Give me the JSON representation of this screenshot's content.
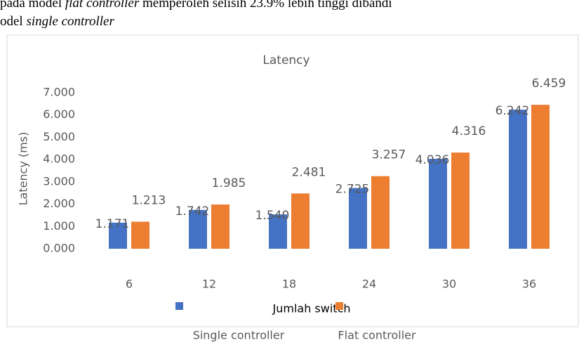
{
  "document": {
    "lines": [
      [
        {
          "text": "pada model ",
          "italic": false
        },
        {
          "text": "flat controller",
          "italic": true
        },
        {
          "text": " memperoleh selisih 23.9% lebih tinggi dibandi",
          "italic": false
        }
      ],
      [
        {
          "text": "odel ",
          "italic": false
        },
        {
          "text": "single controller",
          "italic": true
        }
      ]
    ]
  },
  "chart_data": {
    "type": "bar",
    "title": "Latency",
    "y_label": "Latency (ms)",
    "x_label": "Jumlah switch",
    "categories": [
      "6",
      "12",
      "18",
      "24",
      "30",
      "36"
    ],
    "series": [
      {
        "name": "Single controller",
        "color": "#4472c4",
        "values": [
          1.171,
          1.742,
          1.54,
          2.725,
          4.036,
          6.242
        ],
        "value_labels": [
          "1.171",
          "1.742",
          "1.540",
          "2.725",
          "4.036",
          "6.242"
        ]
      },
      {
        "name": "Flat controller",
        "color": "#ed7d31",
        "values": [
          1.213,
          1.985,
          2.481,
          3.257,
          4.316,
          6.459
        ],
        "value_labels": [
          "1.213",
          "1.985",
          "2.481",
          "3.257",
          "4.316",
          "6.459"
        ]
      }
    ],
    "ylim": [
      0,
      7
    ],
    "yticks": [
      {
        "value": 0,
        "label": "0.000"
      },
      {
        "value": 1,
        "label": "1.000"
      },
      {
        "value": 2,
        "label": "2.000"
      },
      {
        "value": 3,
        "label": "3.000"
      },
      {
        "value": 4,
        "label": "4.000"
      },
      {
        "value": 5,
        "label": "5.000"
      },
      {
        "value": 6,
        "label": "6.000"
      },
      {
        "value": 7,
        "label": "7.000"
      }
    ]
  }
}
